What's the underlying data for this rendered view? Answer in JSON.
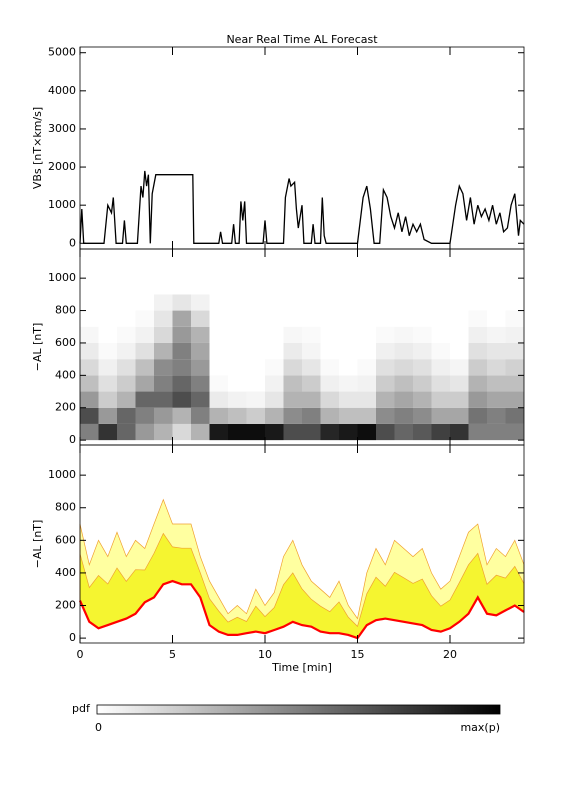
{
  "chart_data": [
    {
      "type": "line",
      "title": "Near Real Time AL Forecast",
      "ylabel": "VBs [nT×km/s]",
      "xlim": [
        0,
        24
      ],
      "xticks": [
        0,
        5,
        10,
        15,
        20
      ],
      "ylim": [
        -150,
        5150
      ],
      "yticks": [
        0,
        1000,
        2000,
        3000,
        4000,
        5000
      ],
      "x": [
        0,
        0.1,
        0.2,
        1.3,
        1.5,
        1.7,
        1.8,
        1.95,
        2.3,
        2.4,
        2.5,
        3.1,
        3.3,
        3.4,
        3.5,
        3.6,
        3.7,
        3.8,
        3.9,
        4.1,
        6.1,
        6.15,
        7.5,
        7.6,
        7.7,
        8.2,
        8.3,
        8.4,
        8.6,
        8.7,
        8.8,
        8.9,
        9.0,
        9.9,
        10.0,
        10.1,
        11.0,
        11.1,
        11.3,
        11.4,
        11.6,
        11.7,
        11.8,
        12.0,
        12.1,
        12.5,
        12.6,
        12.7,
        13.0,
        13.1,
        13.2,
        13.3,
        15.0,
        15.3,
        15.5,
        15.7,
        15.9,
        16.2,
        16.4,
        16.6,
        16.8,
        17.0,
        17.2,
        17.4,
        17.6,
        17.8,
        18.0,
        18.2,
        18.4,
        18.6,
        19.0,
        20.0,
        20.3,
        20.5,
        20.7,
        20.9,
        21.1,
        21.3,
        21.5,
        21.7,
        21.9,
        22.1,
        22.3,
        22.5,
        22.7,
        22.9,
        23.1,
        23.3,
        23.5,
        23.7,
        23.8,
        24.0
      ],
      "series": [
        {
          "color": "#000000",
          "values": [
            0,
            900,
            0,
            0,
            1000,
            800,
            1200,
            0,
            0,
            600,
            0,
            0,
            1500,
            1200,
            1900,
            1500,
            1800,
            0,
            1300,
            1800,
            1800,
            0,
            0,
            300,
            0,
            0,
            500,
            0,
            0,
            1100,
            600,
            1100,
            0,
            0,
            600,
            0,
            0,
            1200,
            1700,
            1500,
            1600,
            900,
            400,
            1000,
            0,
            0,
            500,
            0,
            0,
            1200,
            200,
            0,
            0,
            1200,
            1500,
            900,
            0,
            0,
            1400,
            1200,
            700,
            400,
            800,
            300,
            700,
            200,
            500,
            300,
            500,
            100,
            0,
            0,
            1000,
            1500,
            1300,
            600,
            1200,
            500,
            1000,
            700,
            900,
            600,
            1000,
            500,
            800,
            300,
            400,
            1000,
            1300,
            200,
            600,
            500
          ]
        }
      ]
    },
    {
      "type": "heatmap",
      "ylabel": "−AL [nT]",
      "xlim": [
        0,
        24
      ],
      "xticks": [
        0,
        5,
        10,
        15,
        20
      ],
      "ylim": [
        -30,
        1180
      ],
      "yticks": [
        0,
        200,
        400,
        600,
        800,
        1000
      ],
      "x_bins": [
        0,
        1,
        2,
        3,
        4,
        5,
        6,
        7,
        8,
        9,
        10,
        11,
        12,
        13,
        14,
        15,
        16,
        17,
        18,
        19,
        20,
        21,
        22,
        23,
        24
      ],
      "y_bins": [
        0,
        100,
        200,
        300,
        400,
        500,
        600,
        700,
        800,
        900,
        1000
      ],
      "z": [
        [
          0.5,
          0.7,
          0.4,
          0.25,
          0.15,
          0.08,
          0.03,
          0,
          0,
          0
        ],
        [
          0.8,
          0.4,
          0.2,
          0.12,
          0.06,
          0.02,
          0,
          0,
          0,
          0
        ],
        [
          0.6,
          0.6,
          0.3,
          0.2,
          0.12,
          0.05,
          0.02,
          0,
          0,
          0
        ],
        [
          0.4,
          0.5,
          0.6,
          0.35,
          0.25,
          0.12,
          0.05,
          0.02,
          0,
          0
        ],
        [
          0.3,
          0.4,
          0.6,
          0.5,
          0.45,
          0.3,
          0.15,
          0.1,
          0.05,
          0
        ],
        [
          0.15,
          0.3,
          0.7,
          0.6,
          0.5,
          0.5,
          0.4,
          0.35,
          0.1,
          0
        ],
        [
          0.3,
          0.5,
          0.6,
          0.5,
          0.4,
          0.35,
          0.3,
          0.15,
          0.05,
          0
        ],
        [
          0.9,
          0.3,
          0.08,
          0.02,
          0,
          0,
          0,
          0,
          0,
          0
        ],
        [
          0.95,
          0.25,
          0.05,
          0,
          0,
          0,
          0,
          0,
          0,
          0
        ],
        [
          0.95,
          0.2,
          0.04,
          0,
          0,
          0,
          0,
          0,
          0,
          0
        ],
        [
          0.9,
          0.3,
          0.1,
          0.05,
          0.02,
          0,
          0,
          0,
          0,
          0
        ],
        [
          0.7,
          0.45,
          0.3,
          0.25,
          0.15,
          0.08,
          0.03,
          0,
          0,
          0
        ],
        [
          0.7,
          0.5,
          0.3,
          0.2,
          0.1,
          0.04,
          0.02,
          0,
          0,
          0
        ],
        [
          0.85,
          0.3,
          0.15,
          0.06,
          0.02,
          0,
          0,
          0,
          0,
          0
        ],
        [
          0.9,
          0.25,
          0.1,
          0.04,
          0,
          0,
          0,
          0,
          0,
          0
        ],
        [
          0.95,
          0.25,
          0.1,
          0.05,
          0.02,
          0,
          0,
          0,
          0,
          0
        ],
        [
          0.7,
          0.45,
          0.3,
          0.2,
          0.12,
          0.06,
          0.02,
          0,
          0,
          0
        ],
        [
          0.6,
          0.5,
          0.35,
          0.25,
          0.15,
          0.08,
          0.03,
          0,
          0,
          0
        ],
        [
          0.65,
          0.45,
          0.3,
          0.2,
          0.12,
          0.06,
          0.02,
          0,
          0,
          0
        ],
        [
          0.75,
          0.35,
          0.2,
          0.12,
          0.06,
          0.02,
          0,
          0,
          0,
          0
        ],
        [
          0.8,
          0.35,
          0.2,
          0.1,
          0.04,
          0,
          0,
          0,
          0,
          0
        ],
        [
          0.5,
          0.55,
          0.4,
          0.3,
          0.2,
          0.12,
          0.06,
          0.02,
          0,
          0
        ],
        [
          0.5,
          0.5,
          0.35,
          0.25,
          0.15,
          0.1,
          0.04,
          0,
          0,
          0
        ],
        [
          0.5,
          0.55,
          0.35,
          0.25,
          0.18,
          0.1,
          0.05,
          0.02,
          0,
          0
        ]
      ]
    },
    {
      "type": "area",
      "ylabel": "−AL [nT]",
      "xlabel": "Time [min]",
      "xlim": [
        0,
        24
      ],
      "xticks": [
        0,
        5,
        10,
        15,
        20
      ],
      "ylim": [
        -30,
        1185
      ],
      "yticks": [
        0,
        200,
        400,
        600,
        800,
        1000
      ],
      "x": [
        0,
        0.5,
        1,
        1.5,
        2,
        2.5,
        3,
        3.5,
        4,
        4.5,
        5,
        5.5,
        6,
        6.5,
        7,
        7.5,
        8,
        8.5,
        9,
        9.5,
        10,
        10.5,
        11,
        11.5,
        12,
        12.5,
        13,
        13.5,
        14,
        14.5,
        15,
        15.5,
        16,
        16.5,
        17,
        17.5,
        18,
        18.5,
        19,
        19.5,
        20,
        20.5,
        21,
        21.5,
        22,
        22.5,
        23,
        23.5,
        24
      ],
      "series": [
        {
          "color": "#ffffa0",
          "values": [
            700,
            450,
            600,
            500,
            650,
            500,
            600,
            550,
            700,
            850,
            700,
            700,
            700,
            500,
            350,
            250,
            150,
            200,
            150,
            300,
            200,
            280,
            500,
            600,
            450,
            350,
            300,
            250,
            350,
            200,
            120,
            400,
            550,
            450,
            600,
            550,
            500,
            550,
            400,
            300,
            350,
            500,
            650,
            700,
            450,
            550,
            500,
            600,
            450
          ]
        },
        {
          "color": "#f5f530",
          "values": [
            518,
            310,
            384,
            332,
            430,
            348,
            420,
            418,
            520,
            642,
            560,
            552,
            552,
            400,
            242,
            166,
            98,
            128,
            102,
            196,
            132,
            188,
            328,
            400,
            302,
            238,
            196,
            162,
            222,
            128,
            72,
            272,
            374,
            318,
            404,
            370,
            336,
            362,
            260,
            196,
            234,
            340,
            450,
            520,
            330,
            386,
            368,
            440,
            334
          ]
        },
        {
          "color": "#ff0000",
          "values": [
            230,
            100,
            60,
            80,
            100,
            120,
            150,
            220,
            250,
            330,
            350,
            330,
            330,
            250,
            80,
            40,
            20,
            20,
            30,
            40,
            30,
            50,
            70,
            100,
            80,
            70,
            40,
            30,
            30,
            20,
            0,
            80,
            110,
            120,
            110,
            100,
            90,
            80,
            50,
            40,
            60,
            100,
            150,
            250,
            150,
            140,
            170,
            200,
            160
          ]
        }
      ]
    }
  ],
  "colorbar": {
    "label": "pdf",
    "min_label": "0",
    "max_label": "max(p)"
  }
}
